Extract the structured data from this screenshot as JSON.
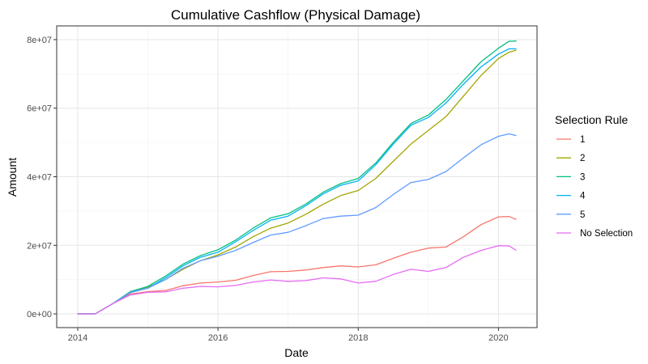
{
  "chart_data": {
    "type": "line",
    "title": "Cumulative Cashflow (Physical Damage)",
    "xlabel": "Date",
    "ylabel": "Amount",
    "xlim": [
      2013.7,
      2020.55
    ],
    "ylim": [
      -4000000,
      84000000
    ],
    "x_ticks": [
      2014,
      2016,
      2018,
      2020
    ],
    "x_tick_labels": [
      "2014",
      "2016",
      "2018",
      "2020"
    ],
    "y_ticks": [
      0,
      20000000,
      40000000,
      60000000,
      80000000
    ],
    "y_tick_labels": [
      "0e+00",
      "2e+07",
      "4e+07",
      "6e+07",
      "8e+07"
    ],
    "grid": true,
    "legend_title": "Selection Rule",
    "legend_position": "right",
    "series": [
      {
        "name": "1",
        "color": "#F8766D",
        "x": [
          2014.0,
          2014.25,
          2014.5,
          2014.75,
          2015.0,
          2015.25,
          2015.5,
          2015.75,
          2016.0,
          2016.25,
          2016.5,
          2016.75,
          2017.0,
          2017.25,
          2017.5,
          2017.75,
          2018.0,
          2018.25,
          2018.5,
          2018.75,
          2019.0,
          2019.25,
          2019.5,
          2019.75,
          2020.0,
          2020.15,
          2020.25
        ],
        "values": [
          0,
          0,
          3000000,
          5800000,
          6500000,
          6800000,
          8200000,
          9000000,
          9300000,
          9800000,
          11200000,
          12300000,
          12400000,
          12800000,
          13500000,
          14000000,
          13700000,
          14300000,
          16200000,
          18000000,
          19200000,
          19500000,
          22500000,
          26000000,
          28300000,
          28400000,
          27600000
        ]
      },
      {
        "name": "2",
        "color": "#A3A500",
        "x": [
          2014.0,
          2014.25,
          2014.5,
          2014.75,
          2015.0,
          2015.25,
          2015.5,
          2015.75,
          2016.0,
          2016.25,
          2016.5,
          2016.75,
          2017.0,
          2017.25,
          2017.5,
          2017.75,
          2018.0,
          2018.25,
          2018.5,
          2018.75,
          2019.0,
          2019.25,
          2019.5,
          2019.75,
          2020.0,
          2020.15,
          2020.25
        ],
        "values": [
          0,
          0,
          3000000,
          6500000,
          7800000,
          10000000,
          13000000,
          15500000,
          17200000,
          19500000,
          22500000,
          25000000,
          26500000,
          29000000,
          32000000,
          34500000,
          36000000,
          39500000,
          44500000,
          49500000,
          53500000,
          57500000,
          63500000,
          69500000,
          74500000,
          76300000,
          76900000
        ]
      },
      {
        "name": "3",
        "color": "#00BF7D",
        "x": [
          2014.0,
          2014.25,
          2014.5,
          2014.75,
          2015.0,
          2015.25,
          2015.5,
          2015.75,
          2016.0,
          2016.25,
          2016.5,
          2016.75,
          2017.0,
          2017.25,
          2017.5,
          2017.75,
          2018.0,
          2018.25,
          2018.5,
          2018.75,
          2019.0,
          2019.25,
          2019.5,
          2019.75,
          2020.0,
          2020.15,
          2020.25
        ],
        "values": [
          0,
          0,
          3000000,
          6500000,
          8000000,
          11000000,
          14500000,
          17000000,
          18700000,
          21500000,
          25000000,
          28000000,
          29200000,
          32000000,
          35500000,
          38000000,
          39500000,
          44000000,
          50000000,
          55500000,
          58000000,
          62500000,
          68000000,
          73500000,
          77500000,
          79500000,
          79600000
        ]
      },
      {
        "name": "4",
        "color": "#00B0F6",
        "x": [
          2014.0,
          2014.25,
          2014.5,
          2014.75,
          2015.0,
          2015.25,
          2015.5,
          2015.75,
          2016.0,
          2016.25,
          2016.5,
          2016.75,
          2017.0,
          2017.25,
          2017.5,
          2017.75,
          2018.0,
          2018.25,
          2018.5,
          2018.75,
          2019.0,
          2019.25,
          2019.5,
          2019.75,
          2020.0,
          2020.15,
          2020.25
        ],
        "values": [
          0,
          0,
          3000000,
          6200000,
          7500000,
          10500000,
          14000000,
          16500000,
          18000000,
          21000000,
          24300000,
          27300000,
          28500000,
          31500000,
          35000000,
          37500000,
          38800000,
          43500000,
          49500000,
          55000000,
          57300000,
          61500000,
          67000000,
          72000000,
          75800000,
          77300000,
          77300000
        ]
      },
      {
        "name": "5",
        "color": "#619CFF",
        "x": [
          2014.0,
          2014.25,
          2014.5,
          2014.75,
          2015.0,
          2015.25,
          2015.5,
          2015.75,
          2016.0,
          2016.25,
          2016.5,
          2016.75,
          2017.0,
          2017.25,
          2017.5,
          2017.75,
          2018.0,
          2018.25,
          2018.5,
          2018.75,
          2019.0,
          2019.25,
          2019.5,
          2019.75,
          2020.0,
          2020.15,
          2020.25
        ],
        "values": [
          0,
          0,
          3000000,
          6300000,
          7500000,
          10000000,
          13300000,
          15500000,
          16800000,
          18500000,
          20800000,
          23000000,
          23800000,
          25700000,
          27800000,
          28500000,
          28800000,
          31000000,
          34800000,
          38300000,
          39200000,
          41500000,
          45500000,
          49300000,
          51800000,
          52500000,
          52000000
        ]
      },
      {
        "name": "No Selection",
        "color": "#E76BF3",
        "x": [
          2014.0,
          2014.25,
          2014.5,
          2014.75,
          2015.0,
          2015.25,
          2015.5,
          2015.75,
          2016.0,
          2016.25,
          2016.5,
          2016.75,
          2017.0,
          2017.25,
          2017.5,
          2017.75,
          2018.0,
          2018.25,
          2018.5,
          2018.75,
          2019.0,
          2019.25,
          2019.5,
          2019.75,
          2020.0,
          2020.15,
          2020.25
        ],
        "values": [
          0,
          0,
          3000000,
          5500000,
          6300000,
          6400000,
          7500000,
          8000000,
          7900000,
          8300000,
          9300000,
          9900000,
          9500000,
          9700000,
          10500000,
          10200000,
          9000000,
          9500000,
          11500000,
          13000000,
          12400000,
          13500000,
          16500000,
          18500000,
          19900000,
          19800000,
          18600000
        ]
      }
    ]
  }
}
